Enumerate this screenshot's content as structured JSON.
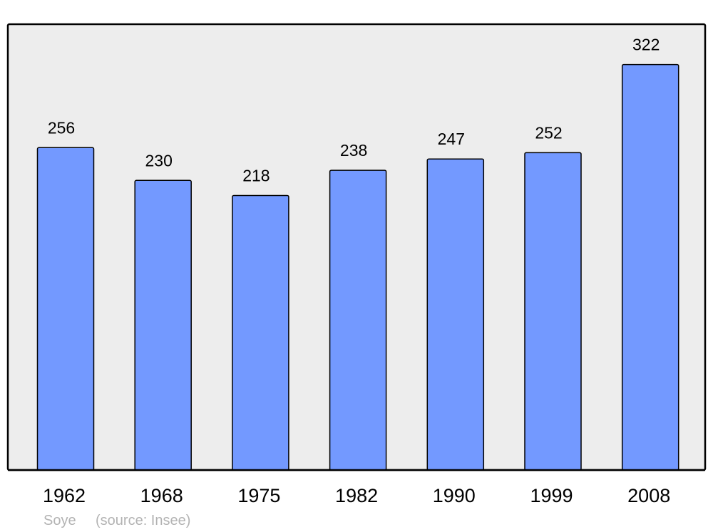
{
  "chart_data": {
    "type": "bar",
    "categories": [
      "1962",
      "1968",
      "1975",
      "1982",
      "1990",
      "1999",
      "2008"
    ],
    "values": [
      256,
      230,
      218,
      238,
      247,
      252,
      322
    ],
    "title": "",
    "xlabel": "",
    "ylabel": "",
    "ylim": [
      0,
      354
    ],
    "grid": false,
    "data_labels": true,
    "colors": {
      "bar": "#7399ff",
      "plot_background": "#ededed",
      "outline": "#000000"
    }
  },
  "footer": {
    "place": "Soye",
    "source": "(source: Insee)"
  }
}
